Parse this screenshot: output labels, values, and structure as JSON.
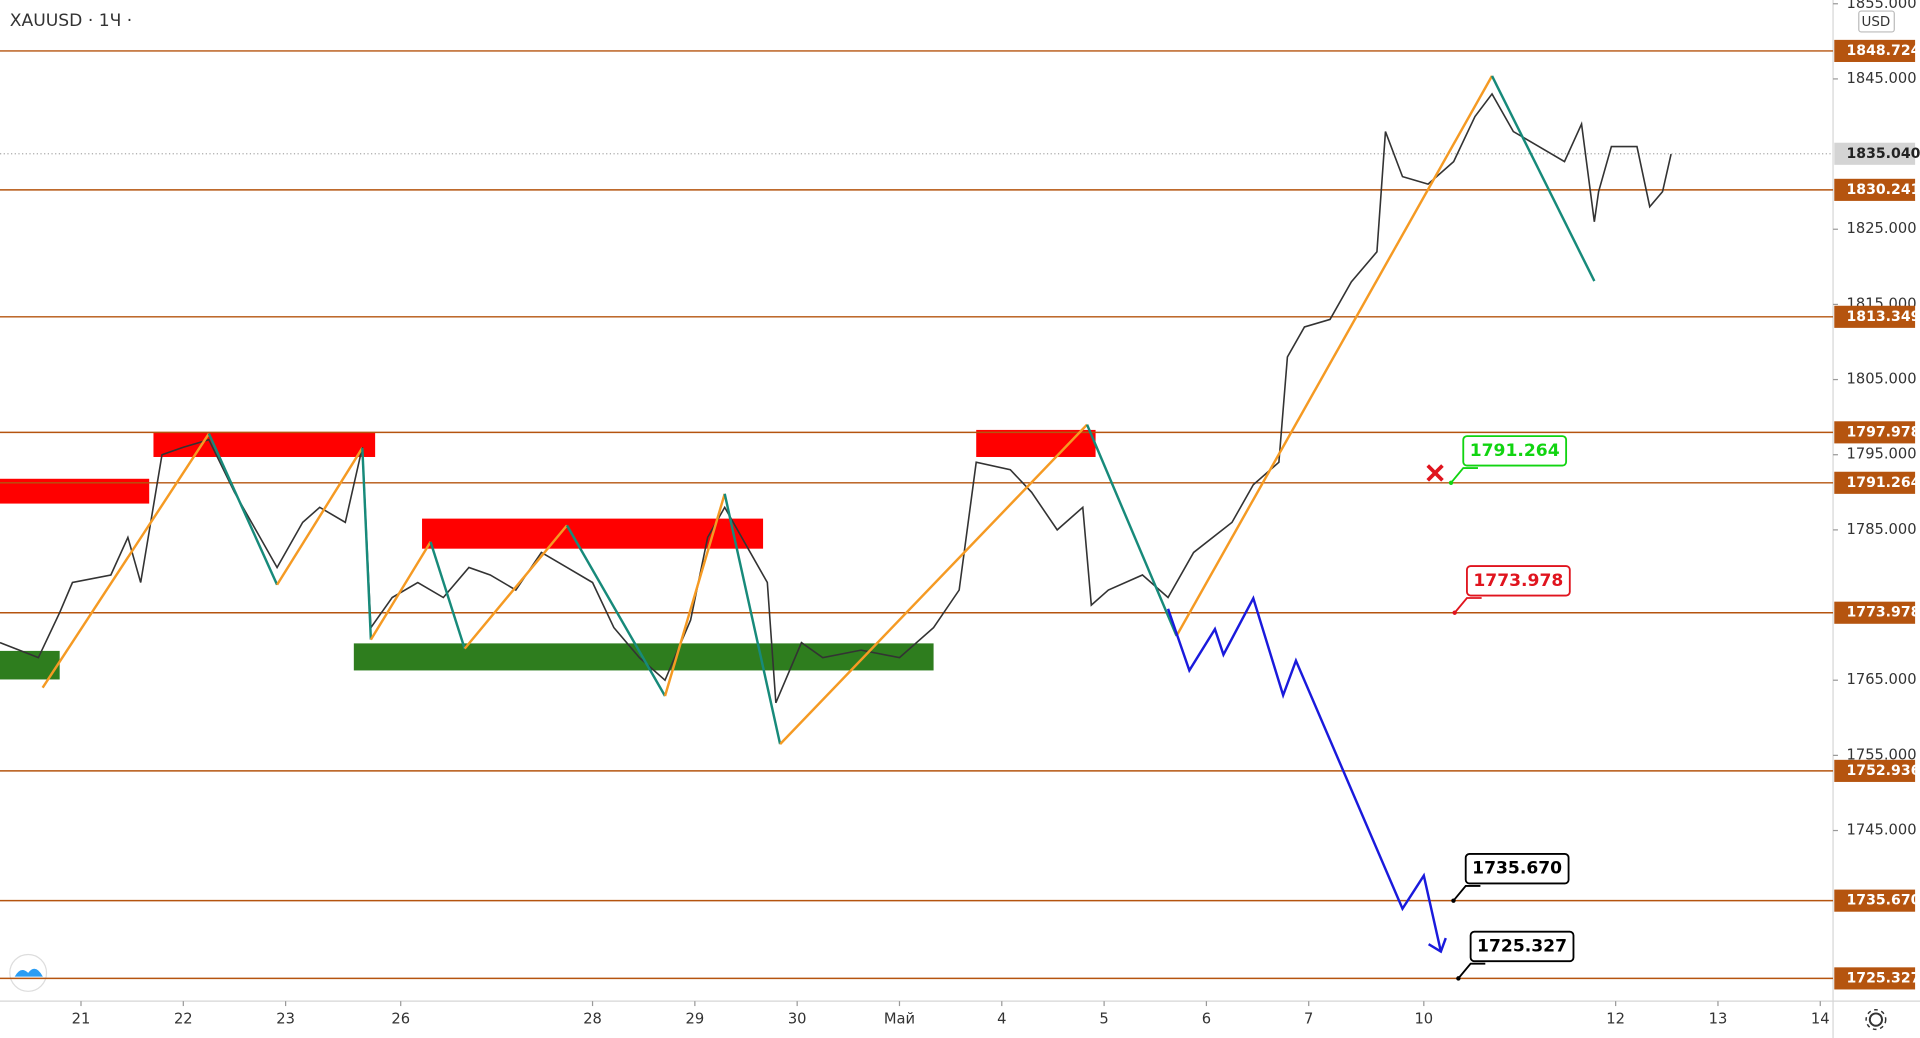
{
  "chart_data": {
    "type": "line",
    "title": "XAUUSD · 1Ч ·",
    "currency": "USD",
    "xlim": [
      0,
      430
    ],
    "ylim": [
      1722.3,
      1855.5
    ],
    "xticks": [
      {
        "value": 19,
        "label": "21"
      },
      {
        "value": 43,
        "label": "22"
      },
      {
        "value": 67,
        "label": "23"
      },
      {
        "value": 94,
        "label": "26"
      },
      {
        "value": 139,
        "label": "28"
      },
      {
        "value": 163,
        "label": "29"
      },
      {
        "value": 187,
        "label": "30"
      },
      {
        "value": 211,
        "label": "Май"
      },
      {
        "value": 235,
        "label": "4"
      },
      {
        "value": 259,
        "label": "5"
      },
      {
        "value": 283,
        "label": "6"
      },
      {
        "value": 307,
        "label": "7"
      },
      {
        "value": 334,
        "label": "10"
      },
      {
        "value": 379,
        "label": "12"
      },
      {
        "value": 403,
        "label": "13"
      },
      {
        "value": 427,
        "label": "14"
      }
    ],
    "yticks": [
      {
        "value": 1855,
        "label": "1855.000"
      },
      {
        "value": 1845,
        "label": "1845.000"
      },
      {
        "value": 1825,
        "label": "1825.000"
      },
      {
        "value": 1815,
        "label": "1815.000"
      },
      {
        "value": 1805,
        "label": "1805.000"
      },
      {
        "value": 1795,
        "label": "1795.000"
      },
      {
        "value": 1785,
        "label": "1785.000"
      },
      {
        "value": 1765,
        "label": "1765.000"
      },
      {
        "value": 1755,
        "label": "1755.000"
      },
      {
        "value": 1745,
        "label": "1745.000"
      }
    ],
    "levels": [
      1848.724,
      1830.241,
      1813.349,
      1797.978,
      1791.264,
      1773.978,
      1752.936,
      {
        "value": 1735.67,
        "label": "1735.670"
      },
      1725.327
    ],
    "level_color": "#b5540f",
    "last_price": {
      "value": 1835.04,
      "label": "1835.040"
    },
    "series": [
      {
        "name": "XAUUSD",
        "color": "#333333",
        "x": [
          0,
          9,
          14,
          17,
          26,
          30,
          33,
          38,
          43,
          49,
          55,
          61,
          65,
          71,
          75,
          81,
          85,
          87,
          92,
          98,
          104,
          110,
          115,
          121,
          127,
          133,
          139,
          144,
          150,
          156,
          162,
          166,
          170,
          176,
          180,
          182,
          188,
          193,
          202,
          211,
          219,
          225,
          229,
          237,
          242,
          248,
          254,
          256,
          260,
          268,
          274,
          280,
          289,
          294,
          300,
          302,
          306,
          312,
          317,
          323,
          325,
          329,
          335,
          341,
          346,
          350,
          355,
          361,
          367,
          371,
          374,
          375,
          378,
          384,
          387,
          390,
          392
        ],
        "values": [
          1770,
          1768,
          1774,
          1778,
          1779,
          1784,
          1778,
          1795,
          1796,
          1797,
          1790,
          1784,
          1780,
          1786,
          1788,
          1786,
          1796,
          1772,
          1776,
          1778,
          1776,
          1780,
          1779,
          1777,
          1782,
          1780,
          1778,
          1772,
          1768,
          1765,
          1773,
          1784,
          1788,
          1782,
          1778,
          1762,
          1770,
          1768,
          1769,
          1768,
          1772,
          1777,
          1794,
          1793,
          1790,
          1785,
          1788,
          1775,
          1777,
          1779,
          1776,
          1782,
          1786,
          1791,
          1794,
          1808,
          1812,
          1813,
          1818,
          1822,
          1838,
          1832,
          1831,
          1834,
          1840,
          1843,
          1838,
          1836,
          1834,
          1839,
          1826,
          1830,
          1836,
          1836,
          1828,
          1830,
          1835
        ]
      },
      {
        "name": "zigzag",
        "color": "#f59a23",
        "down_color": "#178a7a",
        "x": [
          10,
          49,
          65,
          85,
          87,
          101,
          109,
          133,
          156,
          170,
          183,
          255,
          276,
          350,
          374
        ],
        "values": [
          1764,
          1797.8,
          1777.7,
          1795.9,
          1770.4,
          1783.4,
          1769.2,
          1785.6,
          1762.9,
          1789.8,
          1756.5,
          1799,
          1770.9,
          1845.4,
          1818.1
        ]
      },
      {
        "name": "forecast",
        "color": "#1a1adc",
        "x": [
          274,
          279,
          285,
          287,
          294,
          301,
          304,
          329,
          334,
          338
        ],
        "values": [
          1774.5,
          1766.3,
          1771.8,
          1768.4,
          1775.9,
          1763,
          1767.6,
          1734.6,
          1739,
          1728.9
        ]
      }
    ],
    "zones": [
      {
        "color": "#ff0000",
        "x": [
          0,
          35
        ],
        "y": [
          1788.5,
          1791.8
        ]
      },
      {
        "color": "#ff0000",
        "x": [
          36,
          88
        ],
        "y": [
          1794.7,
          1798
        ]
      },
      {
        "color": "#ff0000",
        "x": [
          99,
          179
        ],
        "y": [
          1782.5,
          1786.5
        ]
      },
      {
        "color": "#ff0000",
        "x": [
          229,
          257
        ],
        "y": [
          1794.7,
          1798.3
        ]
      },
      {
        "color": "#2e7d1e",
        "x": [
          0,
          14
        ],
        "y": [
          1765.1,
          1768.9
        ]
      },
      {
        "color": "#2e7d1e",
        "x": [
          83,
          219
        ],
        "y": [
          1766.3,
          1769.9
        ]
      }
    ]
  }
}
